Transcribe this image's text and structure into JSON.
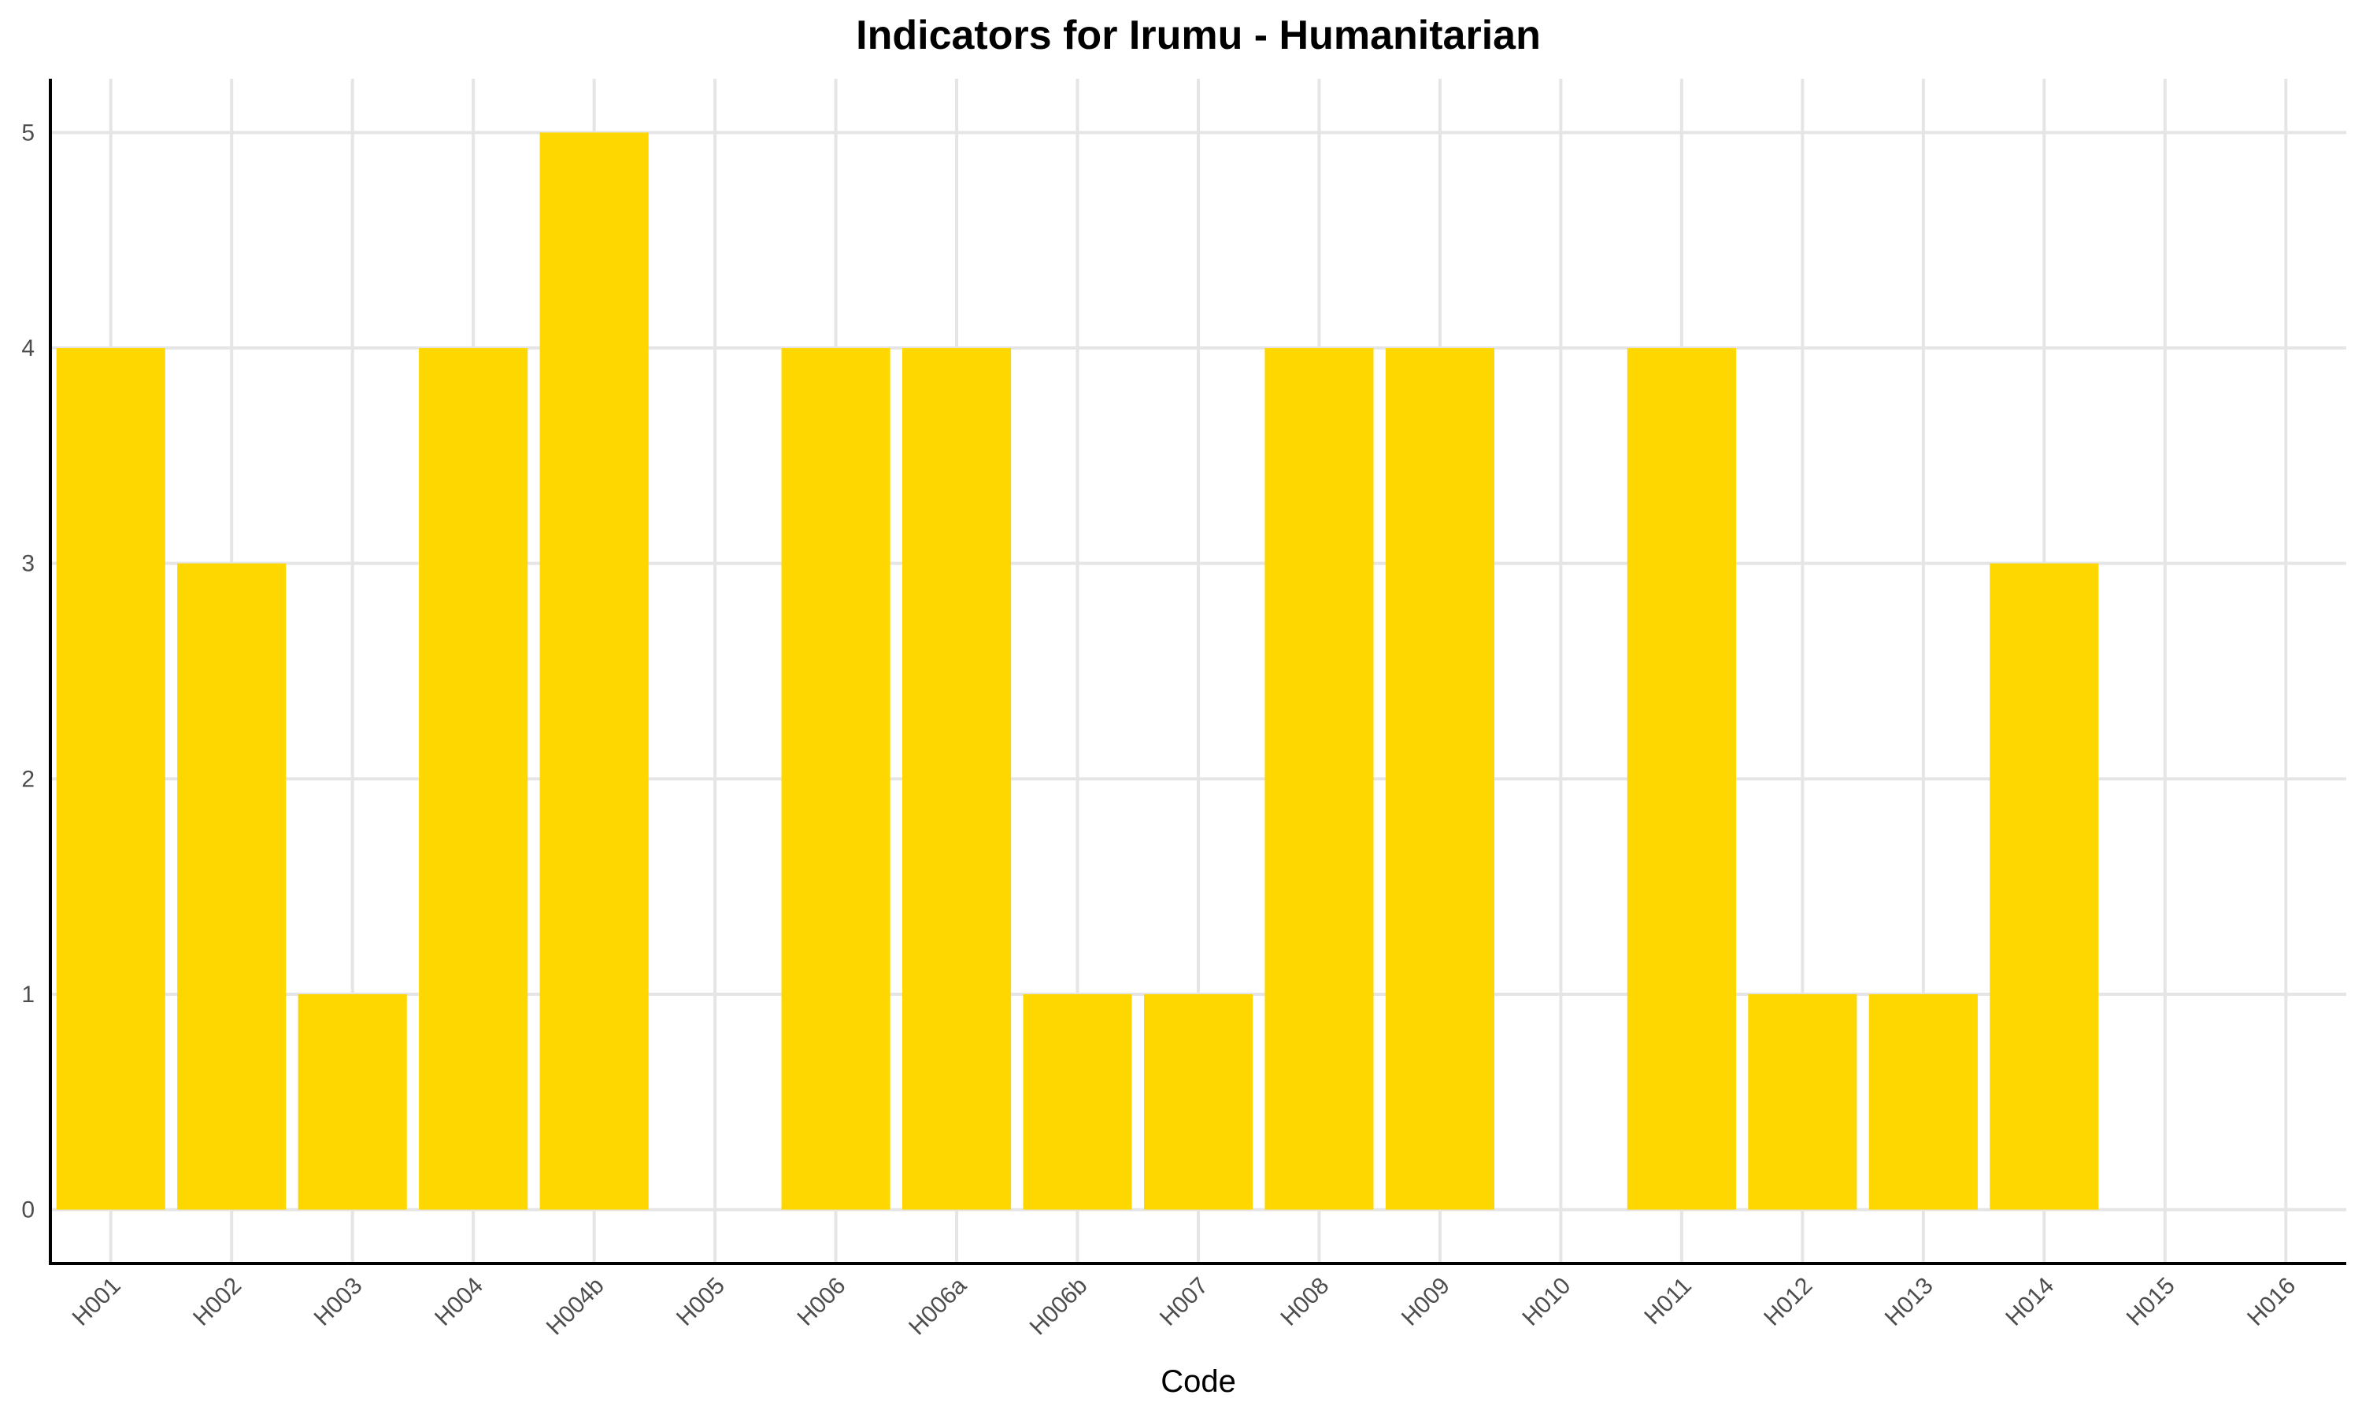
{
  "chart_data": {
    "type": "bar",
    "title": "Indicators for Irumu - Humanitarian",
    "xlabel": "Code",
    "ylabel": "",
    "categories": [
      "H001",
      "H002",
      "H003",
      "H004",
      "H004b",
      "H005",
      "H006",
      "H006a",
      "H006b",
      "H007",
      "H008",
      "H009",
      "H010",
      "H011",
      "H012",
      "H013",
      "H014",
      "H015",
      "H016"
    ],
    "values": [
      4,
      3,
      1,
      4,
      5,
      0,
      4,
      4,
      1,
      1,
      4,
      4,
      0,
      4,
      1,
      1,
      3,
      0,
      0
    ],
    "yticks": [
      "0",
      "1",
      "2",
      "3",
      "4",
      "5"
    ],
    "ylim": [
      -0.25,
      5.25
    ],
    "bar_color": "#FFD700",
    "grid": true,
    "legend": "none"
  }
}
